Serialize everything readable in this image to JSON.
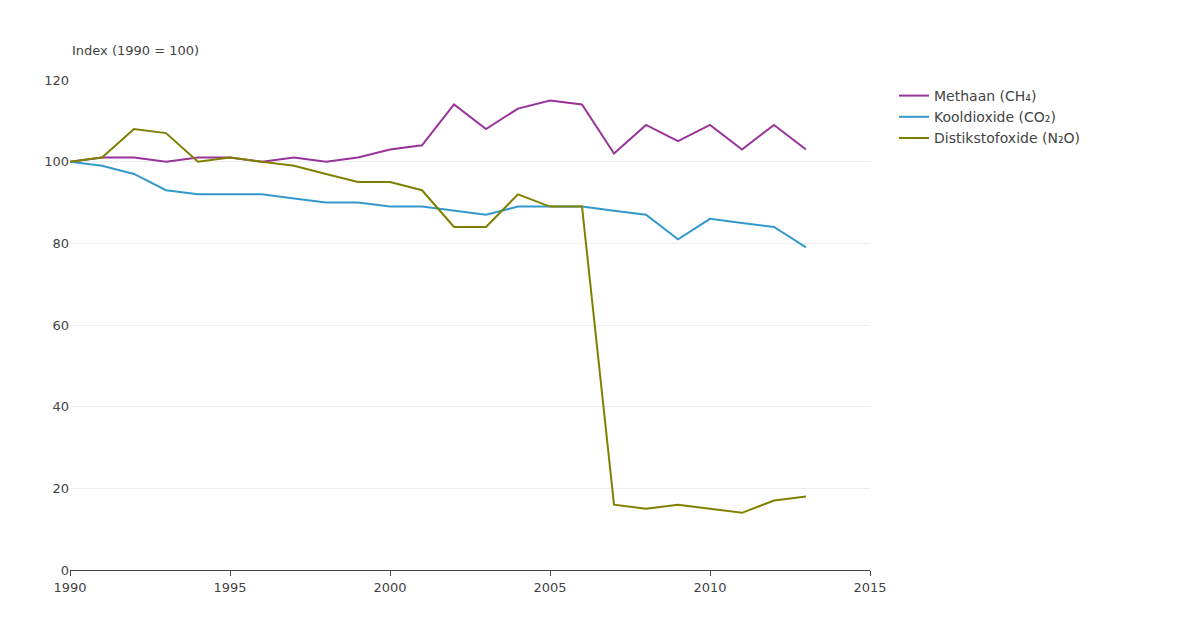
{
  "chart_data": {
    "type": "line",
    "ylabel": "Index (1990 = 100)",
    "x": [
      1990,
      1991,
      1992,
      1993,
      1994,
      1995,
      1996,
      1997,
      1998,
      1999,
      2000,
      2001,
      2002,
      2003,
      2004,
      2005,
      2006,
      2007,
      2008,
      2009,
      2010,
      2011,
      2012,
      2013
    ],
    "series": [
      {
        "name": "Methaan (CH₄)",
        "color": "#993399",
        "values": [
          100,
          101,
          101,
          100,
          101,
          101,
          100,
          101,
          100,
          101,
          103,
          104,
          114,
          108,
          113,
          115,
          114,
          102,
          109,
          105,
          109,
          103,
          109,
          103
        ]
      },
      {
        "name": "Kooldioxide (CO₂)",
        "color": "#3399CC",
        "values": [
          100,
          99,
          97,
          93,
          92,
          92,
          92,
          91,
          90,
          90,
          89,
          89,
          88,
          87,
          89,
          89,
          89,
          88,
          87,
          81,
          86,
          85,
          84,
          79
        ]
      },
      {
        "name": "Distikstofoxide (N₂O)",
        "color": "#808000",
        "values": [
          100,
          101,
          108,
          107,
          100,
          101,
          100,
          99,
          97,
          95,
          95,
          93,
          84,
          84,
          92,
          89,
          89,
          16,
          15,
          16,
          15,
          14,
          17,
          18
        ]
      }
    ],
    "xlim": [
      1990,
      2015
    ],
    "xticks": [
      1990,
      1995,
      2000,
      2005,
      2010,
      2015
    ],
    "ylim": [
      0,
      120
    ],
    "yticks": [
      0,
      20,
      40,
      60,
      80,
      100,
      120
    ],
    "grid": true,
    "legend": "right"
  }
}
